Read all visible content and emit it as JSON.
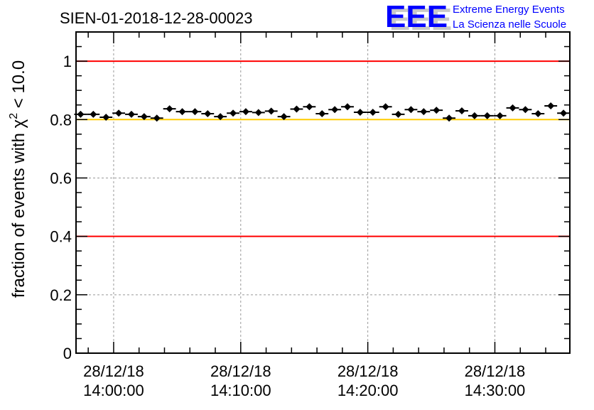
{
  "title": "SIEN-01-2018-12-28-00023",
  "logo": {
    "mark": "EEE",
    "line1": "Extreme Energy Events",
    "line2": "La Scienza nelle Scuole",
    "color": "#0000ff"
  },
  "chart_data": {
    "type": "scatter",
    "title": "SIEN-01-2018-12-28-00023",
    "xlabel": "",
    "ylabel": "fraction of events with χ² < 10.0",
    "ylabel_parts": {
      "main": "fraction of events with χ",
      "sup": "2",
      "tail": " < 10.0"
    },
    "x_units": "minutes after 28/12/18 14:00:00",
    "xlim": [
      -2.96,
      35.9
    ],
    "ylim": [
      0,
      1.1
    ],
    "xticks": [
      {
        "value": 0,
        "date": "28/12/18",
        "time": "14:00:00"
      },
      {
        "value": 10,
        "date": "28/12/18",
        "time": "14:10:00"
      },
      {
        "value": 20,
        "date": "28/12/18",
        "time": "14:20:00"
      },
      {
        "value": 30,
        "date": "28/12/18",
        "time": "14:30:00"
      }
    ],
    "yticks": [
      {
        "value": 0,
        "label": "0"
      },
      {
        "value": 0.2,
        "label": "0.2"
      },
      {
        "value": 0.4,
        "label": "0.4"
      },
      {
        "value": 0.6,
        "label": "0.6"
      },
      {
        "value": 0.8,
        "label": "0.8"
      },
      {
        "value": 1,
        "label": "1"
      }
    ],
    "grid": true,
    "reference_lines": [
      {
        "y": 1.0,
        "color": "#ff0000"
      },
      {
        "y": 0.8,
        "color": "#ffcc00"
      },
      {
        "y": 0.4,
        "color": "#ff0000"
      }
    ],
    "bin_width_min": 1.0,
    "series": [
      {
        "name": "fraction",
        "color": "#000000",
        "x": [
          -2.6,
          -1.6,
          -0.6,
          0.4,
          1.4,
          2.4,
          3.4,
          4.4,
          5.4,
          6.4,
          7.4,
          8.4,
          9.4,
          10.4,
          11.4,
          12.4,
          13.4,
          14.4,
          15.4,
          16.4,
          17.4,
          18.4,
          19.4,
          20.4,
          21.4,
          22.4,
          23.4,
          24.4,
          25.4,
          26.4,
          27.4,
          28.4,
          29.4,
          30.4,
          31.4,
          32.4,
          33.4,
          34.4,
          35.4
        ],
        "y": [
          0.818,
          0.818,
          0.808,
          0.822,
          0.818,
          0.81,
          0.805,
          0.837,
          0.827,
          0.827,
          0.82,
          0.81,
          0.822,
          0.827,
          0.824,
          0.829,
          0.81,
          0.836,
          0.844,
          0.82,
          0.834,
          0.844,
          0.825,
          0.825,
          0.844,
          0.818,
          0.834,
          0.827,
          0.832,
          0.805,
          0.83,
          0.813,
          0.813,
          0.813,
          0.84,
          0.834,
          0.82,
          0.847,
          0.822
        ]
      }
    ]
  }
}
